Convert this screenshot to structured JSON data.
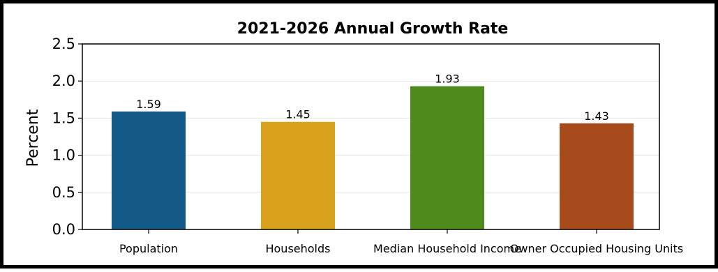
{
  "chart_data": {
    "type": "bar",
    "title": "2021-2026 Annual Growth Rate",
    "xlabel": "",
    "ylabel": "Percent",
    "ylim": [
      0,
      2.5
    ],
    "yticks": [
      "0.0",
      "0.5",
      "1.0",
      "1.5",
      "2.0",
      "2.5"
    ],
    "grid": true,
    "categories": [
      "Population",
      "Households",
      "Median Household Income",
      "Owner Occupied Housing Units"
    ],
    "values": [
      1.59,
      1.45,
      1.93,
      1.43
    ],
    "value_labels": [
      "1.59",
      "1.45",
      "1.93",
      "1.43"
    ],
    "colors": [
      "#145a88",
      "#d9a21c",
      "#4e8a1c",
      "#a74a1c"
    ]
  }
}
